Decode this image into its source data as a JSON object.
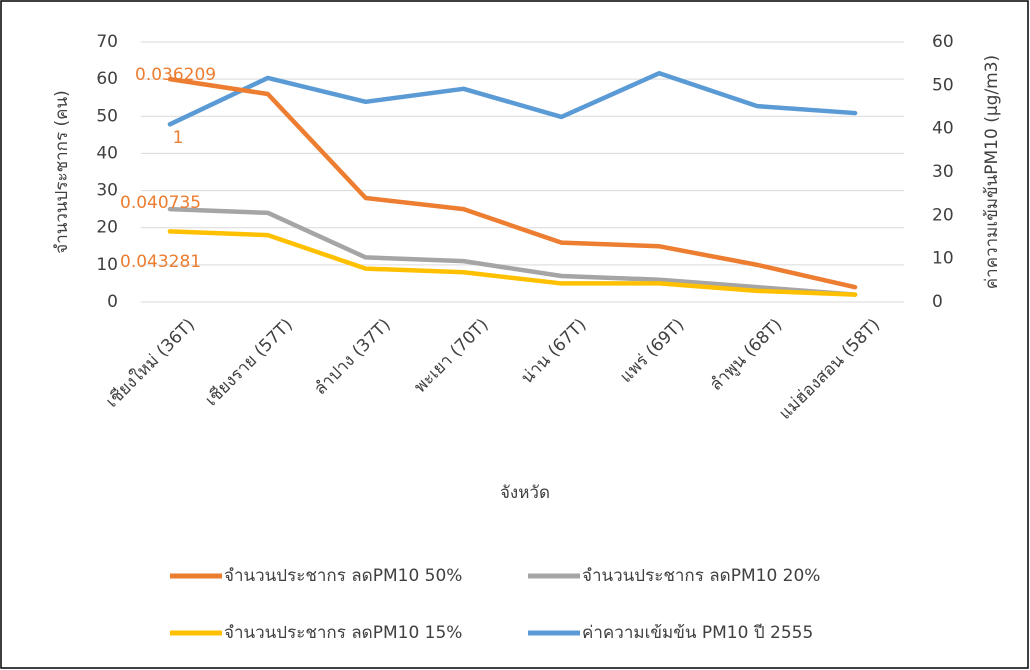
{
  "chart_data": {
    "type": "line",
    "categories": [
      "เชียงใหม่ (36T)",
      "เชียงราย (57T)",
      "ลำปาง (37T)",
      "พะเยา (70T)",
      "น่าน (67T)",
      "แพร่ (69T)",
      "ลำพูน (68T)",
      "แม่ฮ่องสอน (58T)"
    ],
    "series": [
      {
        "name": "จำนวนประชากร ลดPM10 50%",
        "color": "#ed7d31",
        "values": [
          60,
          56,
          28,
          25,
          16,
          15,
          10,
          4
        ]
      },
      {
        "name": "จำนวนประชากร ลดPM10 20%",
        "color": "#a5a5a5",
        "values": [
          25,
          24,
          12,
          11,
          7,
          6,
          4,
          2
        ]
      },
      {
        "name": "จำนวนประชากร ลดPM10 15%",
        "color": "#ffc000",
        "values": [
          19,
          18,
          9,
          8,
          5,
          5,
          3,
          2
        ]
      },
      {
        "name": "ค่าความเข้มข้น PM10 ปี 2555",
        "color": "#5b9bd5",
        "axis": "y2",
        "values": [
          41,
          51.7,
          46.2,
          49.2,
          42.7,
          52.8,
          45.2,
          43.6
        ]
      }
    ],
    "ylabel": "จำนวนประชากร (คน)",
    "y2label": "ค่าความเข้มข้นPM10 (µg/m3)",
    "xlabel": "จังหวัด",
    "ylim": [
      0,
      70
    ],
    "yticks": [
      0,
      10,
      20,
      30,
      40,
      50,
      60,
      70
    ],
    "y2lim": [
      0,
      60
    ],
    "y2ticks": [
      0,
      10,
      20,
      30,
      40,
      50,
      60
    ],
    "annotations": [
      "0.036209",
      "1",
      "0.040735",
      "0.043281"
    ],
    "annotation_color": "#ed7d31",
    "grid": true,
    "legend": "bottom"
  }
}
